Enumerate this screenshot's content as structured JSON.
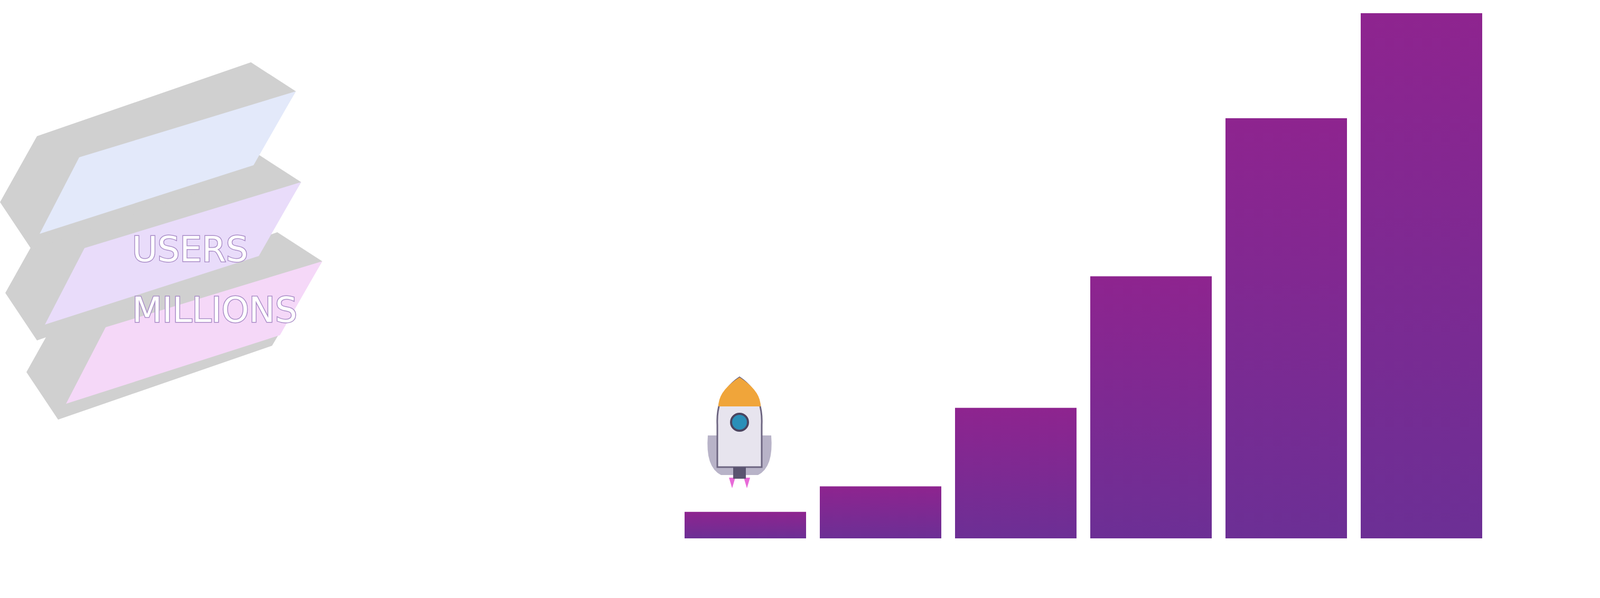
{
  "chart_data": {
    "type": "bar",
    "title": [
      "USERS",
      "MILLIONS"
    ],
    "categories": [
      null,
      null,
      null,
      null,
      null,
      null
    ],
    "values": [
      26,
      51,
      128,
      257,
      412,
      515
    ],
    "color": "#8e248f",
    "ylim": [
      0,
      515
    ],
    "tick_labels": false,
    "grid": false
  }
}
